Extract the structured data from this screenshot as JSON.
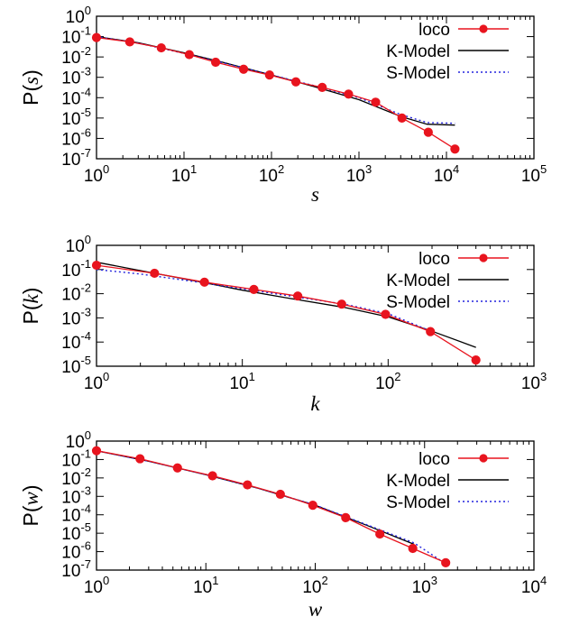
{
  "chart_data": [
    {
      "type": "line",
      "xscale": "log",
      "yscale": "log",
      "xlim": [
        1,
        100000
      ],
      "ylim": [
        1e-07,
        1
      ],
      "x_ticks": [
        1,
        10,
        100,
        1000,
        10000,
        100000
      ],
      "y_ticks": [
        1e-07,
        1e-06,
        1e-05,
        0.0001,
        0.001,
        0.01,
        0.1,
        1
      ],
      "x_tick_labels": [
        {
          "base": "10",
          "exp": "0"
        },
        {
          "base": "10",
          "exp": "1"
        },
        {
          "base": "10",
          "exp": "2"
        },
        {
          "base": "10",
          "exp": "3"
        },
        {
          "base": "10",
          "exp": "4"
        },
        {
          "base": "10",
          "exp": "5"
        }
      ],
      "y_tick_labels": [
        {
          "base": "10",
          "exp": "-7"
        },
        {
          "base": "10",
          "exp": "-6"
        },
        {
          "base": "10",
          "exp": "-5"
        },
        {
          "base": "10",
          "exp": "-4"
        },
        {
          "base": "10",
          "exp": "-3"
        },
        {
          "base": "10",
          "exp": "-2"
        },
        {
          "base": "10",
          "exp": "-1"
        },
        {
          "base": "10",
          "exp": "0"
        }
      ],
      "xlabel": "s",
      "ylabel": {
        "prefix": "P(",
        "var": "s",
        "suffix": ")"
      },
      "legend_position": "top-right",
      "series": [
        {
          "name": "loco",
          "color": "#e8141e",
          "style": "line-circle",
          "x": [
            1,
            2.4,
            5.5,
            11.5,
            23,
            48,
            95,
            190,
            380,
            760,
            1550,
            3100,
            6200,
            12500
          ],
          "y": [
            0.09,
            0.055,
            0.028,
            0.013,
            0.0055,
            0.0025,
            0.0013,
            0.0006,
            0.00032,
            0.00015,
            6e-05,
            1e-05,
            2e-06,
            3e-07
          ]
        },
        {
          "name": "K-Model",
          "color": "#000000",
          "style": "solid",
          "x": [
            1,
            3,
            10,
            30,
            100,
            300,
            1000,
            3000,
            6000,
            12500
          ],
          "y": [
            0.1,
            0.05,
            0.016,
            0.005,
            0.0013,
            0.00036,
            8e-05,
            1.2e-05,
            5e-06,
            4.5e-06
          ]
        },
        {
          "name": "S-Model",
          "color": "#2222dd",
          "style": "dotted",
          "x": [
            1,
            3,
            10,
            30,
            100,
            300,
            1000,
            3000,
            6000,
            12500
          ],
          "y": [
            0.1,
            0.048,
            0.015,
            0.0048,
            0.0013,
            0.0004,
            0.0001,
            1.5e-05,
            6e-06,
            5.5e-06
          ]
        }
      ]
    },
    {
      "type": "line",
      "xscale": "log",
      "yscale": "log",
      "xlim": [
        1,
        1000
      ],
      "ylim": [
        1e-05,
        1
      ],
      "x_ticks": [
        1,
        10,
        100,
        1000
      ],
      "y_ticks": [
        1e-05,
        0.0001,
        0.001,
        0.01,
        0.1,
        1
      ],
      "x_tick_labels": [
        {
          "base": "10",
          "exp": "0"
        },
        {
          "base": "10",
          "exp": "1"
        },
        {
          "base": "10",
          "exp": "2"
        },
        {
          "base": "10",
          "exp": "3"
        }
      ],
      "y_tick_labels": [
        {
          "base": "10",
          "exp": "-5"
        },
        {
          "base": "10",
          "exp": "-4"
        },
        {
          "base": "10",
          "exp": "-3"
        },
        {
          "base": "10",
          "exp": "-2"
        },
        {
          "base": "10",
          "exp": "-1"
        },
        {
          "base": "10",
          "exp": "0"
        }
      ],
      "xlabel": "k",
      "ylabel": {
        "prefix": "P(",
        "var": "k",
        "suffix": ")"
      },
      "legend_position": "top-right",
      "series": [
        {
          "name": "loco",
          "color": "#e8141e",
          "style": "line-circle",
          "x": [
            1,
            2.5,
            5.5,
            12,
            24,
            48,
            96,
            195,
            400
          ],
          "y": [
            0.15,
            0.07,
            0.03,
            0.015,
            0.008,
            0.0037,
            0.0014,
            0.00027,
            1.8e-05
          ]
        },
        {
          "name": "K-Model",
          "color": "#000000",
          "style": "solid",
          "x": [
            1,
            2,
            5,
            10,
            20,
            50,
            100,
            200,
            400
          ],
          "y": [
            0.2,
            0.09,
            0.032,
            0.014,
            0.0068,
            0.0027,
            0.0011,
            0.00028,
            6e-05
          ]
        },
        {
          "name": "S-Model",
          "color": "#2222dd",
          "style": "dotted",
          "x": [
            1,
            2,
            5,
            10,
            20,
            50,
            100,
            200
          ],
          "y": [
            0.1,
            0.065,
            0.03,
            0.016,
            0.0085,
            0.0037,
            0.0015,
            0.00027
          ]
        }
      ]
    },
    {
      "type": "line",
      "xscale": "log",
      "yscale": "log",
      "xlim": [
        1,
        10000
      ],
      "ylim": [
        1e-07,
        1
      ],
      "x_ticks": [
        1,
        10,
        100,
        1000,
        10000
      ],
      "y_ticks": [
        1e-07,
        1e-06,
        1e-05,
        0.0001,
        0.001,
        0.01,
        0.1,
        1
      ],
      "x_tick_labels": [
        {
          "base": "10",
          "exp": "0"
        },
        {
          "base": "10",
          "exp": "1"
        },
        {
          "base": "10",
          "exp": "2"
        },
        {
          "base": "10",
          "exp": "3"
        },
        {
          "base": "10",
          "exp": "4"
        }
      ],
      "y_tick_labels": [
        {
          "base": "10",
          "exp": "-7"
        },
        {
          "base": "10",
          "exp": "-6"
        },
        {
          "base": "10",
          "exp": "-5"
        },
        {
          "base": "10",
          "exp": "-4"
        },
        {
          "base": "10",
          "exp": "-3"
        },
        {
          "base": "10",
          "exp": "-2"
        },
        {
          "base": "10",
          "exp": "-1"
        },
        {
          "base": "10",
          "exp": "0"
        }
      ],
      "xlabel": "w",
      "ylabel": {
        "prefix": "P(",
        "var": "w",
        "suffix": ")"
      },
      "legend_position": "top-right",
      "series": [
        {
          "name": "loco",
          "color": "#e8141e",
          "style": "line-circle",
          "x": [
            1,
            2.5,
            5.5,
            11.5,
            24,
            48,
            95,
            190,
            390,
            780,
            1560
          ],
          "y": [
            0.3,
            0.11,
            0.035,
            0.013,
            0.0042,
            0.0013,
            0.00033,
            7e-05,
            9e-06,
            1.5e-06,
            2.5e-07
          ]
        },
        {
          "name": "K-Model",
          "color": "#000000",
          "style": "solid",
          "x": [
            1,
            3,
            10,
            30,
            100,
            300,
            800
          ],
          "y": [
            0.3,
            0.08,
            0.015,
            0.0028,
            0.00033,
            2.6e-05,
            2.5e-06
          ]
        },
        {
          "name": "S-Model",
          "color": "#2222dd",
          "style": "dotted",
          "x": [
            1,
            3,
            10,
            30,
            100,
            300,
            800,
            1600
          ],
          "y": [
            0.3,
            0.08,
            0.015,
            0.0028,
            0.00034,
            2.8e-05,
            3e-06,
            2e-07
          ]
        }
      ]
    }
  ]
}
